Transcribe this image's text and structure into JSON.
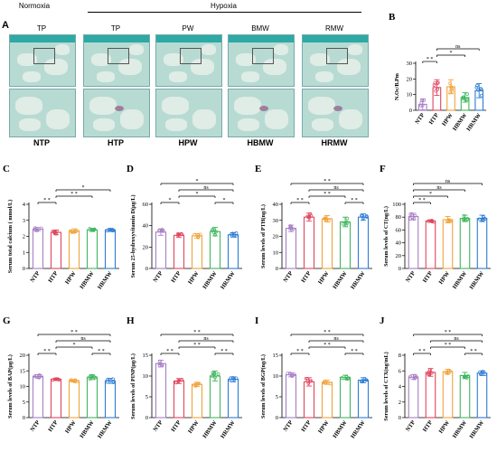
{
  "panel_a": {
    "letter": "A",
    "normoxia_label": "Normoxia",
    "hypoxia_label": "Hypoxia",
    "top_labels": [
      "TP",
      "TP",
      "PW",
      "BMW",
      "RMW"
    ],
    "bottom_labels": [
      "NTP",
      "HTP",
      "HPW",
      "HBMW",
      "HRMW"
    ]
  },
  "colors": {
    "NTP": "#a77fc4",
    "HTP": "#e0455d",
    "HPW": "#f0a33a",
    "HBMW": "#3fb65e",
    "HRMW": "#2d7bd4"
  },
  "chart_data": [
    {
      "id": "B",
      "type": "bar",
      "ylabel": "N.Oc/B.Pm",
      "categories": [
        "NTP",
        "HTP",
        "HPW",
        "HBMW",
        "HRMW"
      ],
      "values": [
        3.8,
        14.5,
        15.0,
        8.2,
        12.5
      ],
      "errors": [
        3.5,
        5.0,
        4.5,
        3.0,
        4.5
      ],
      "ylim": [
        0,
        30
      ],
      "yticks": [
        0,
        10,
        20,
        30
      ],
      "significance": [
        {
          "from": 0,
          "to": 1,
          "label": "* *",
          "level": 0
        },
        {
          "from": 1,
          "to": 3,
          "label": "*",
          "level": 1
        },
        {
          "from": 1,
          "to": 4,
          "label": "ns",
          "level": 2
        }
      ]
    },
    {
      "id": "C",
      "type": "bar",
      "ylabel": "Serum total calcium ( mmol/L)",
      "categories": [
        "NTP",
        "HTP",
        "HPW",
        "HBMW",
        "HRMW"
      ],
      "values": [
        2.45,
        2.25,
        2.35,
        2.4,
        2.4
      ],
      "errors": [
        0.1,
        0.15,
        0.12,
        0.1,
        0.1
      ],
      "ylim": [
        0,
        4
      ],
      "yticks": [
        0,
        1,
        2,
        3,
        4
      ],
      "significance": [
        {
          "from": 0,
          "to": 1,
          "label": "* *",
          "level": 0
        },
        {
          "from": 1,
          "to": 3,
          "label": "* *",
          "level": 1
        },
        {
          "from": 1,
          "to": 4,
          "label": "*",
          "level": 2
        }
      ]
    },
    {
      "id": "D",
      "type": "bar",
      "ylabel": "Serum 25-hydroxyvitamin D(μg/L)",
      "categories": [
        "NTP",
        "HTP",
        "HPW",
        "HBMW",
        "HRMW"
      ],
      "values": [
        34,
        31,
        30.5,
        34.5,
        31.5
      ],
      "errors": [
        3,
        2,
        2,
        4,
        2
      ],
      "ylim": [
        0,
        60
      ],
      "yticks": [
        0,
        20,
        40,
        60
      ],
      "significance": [
        {
          "from": 0,
          "to": 1,
          "label": "*",
          "level": 0
        },
        {
          "from": 3,
          "to": 4,
          "label": "*",
          "level": 0
        },
        {
          "from": 1,
          "to": 3,
          "label": "*",
          "level": 1
        },
        {
          "from": 1,
          "to": 4,
          "label": "ns",
          "level": 2
        },
        {
          "from": 0,
          "to": 4,
          "label": "*",
          "level": 3
        }
      ]
    },
    {
      "id": "E",
      "type": "bar",
      "ylabel": "Serum levels of PTH(ng/L)",
      "categories": [
        "NTP",
        "HTP",
        "HPW",
        "HBMW",
        "HRMW"
      ],
      "values": [
        25,
        32,
        31,
        29,
        32
      ],
      "errors": [
        2,
        2.5,
        2,
        3,
        2
      ],
      "ylim": [
        0,
        40
      ],
      "yticks": [
        0,
        10,
        20,
        30,
        40
      ],
      "significance": [
        {
          "from": 0,
          "to": 1,
          "label": "* *",
          "level": 0
        },
        {
          "from": 3,
          "to": 4,
          "label": "* *",
          "level": 0
        },
        {
          "from": 1,
          "to": 3,
          "label": "* *",
          "level": 1
        },
        {
          "from": 1,
          "to": 4,
          "label": "ns",
          "level": 2
        },
        {
          "from": 0,
          "to": 4,
          "label": "* *",
          "level": 3
        }
      ]
    },
    {
      "id": "F",
      "type": "bar",
      "ylabel": "Serum levels of CT(ng/L)",
      "categories": [
        "NTP",
        "HTP",
        "HPW",
        "HBMW",
        "HRMW"
      ],
      "values": [
        81,
        74,
        76,
        78,
        78
      ],
      "errors": [
        5,
        2,
        5,
        5,
        5
      ],
      "ylim": [
        0,
        100
      ],
      "yticks": [
        0,
        20,
        40,
        60,
        80,
        100
      ],
      "significance": [
        {
          "from": 0,
          "to": 1,
          "label": "* *",
          "level": 0
        },
        {
          "from": 0,
          "to": 2,
          "label": "*",
          "level": 1
        },
        {
          "from": 0,
          "to": 3,
          "label": "ns",
          "level": 2
        },
        {
          "from": 0,
          "to": 4,
          "label": "ns",
          "level": 3
        }
      ]
    },
    {
      "id": "G",
      "type": "bar",
      "ylabel": "Serum levels of BAP(μg/L)",
      "categories": [
        "NTP",
        "HTP",
        "HPW",
        "HBMW",
        "HRMW"
      ],
      "values": [
        13.2,
        12.3,
        11.8,
        13.0,
        11.8
      ],
      "errors": [
        0.6,
        0.4,
        0.4,
        0.8,
        0.8
      ],
      "ylim": [
        0,
        20
      ],
      "yticks": [
        0,
        5,
        10,
        15,
        20
      ],
      "significance": [
        {
          "from": 0,
          "to": 1,
          "label": "* *",
          "level": 0
        },
        {
          "from": 3,
          "to": 4,
          "label": "* *",
          "level": 0
        },
        {
          "from": 1,
          "to": 3,
          "label": "*",
          "level": 1
        },
        {
          "from": 1,
          "to": 4,
          "label": "ns",
          "level": 2
        },
        {
          "from": 0,
          "to": 4,
          "label": "* *",
          "level": 3
        }
      ]
    },
    {
      "id": "H",
      "type": "bar",
      "ylabel": "Serum levels of PINP(μg/L)",
      "categories": [
        "NTP",
        "HTP",
        "HPW",
        "HBMW",
        "HRMW"
      ],
      "values": [
        13.0,
        8.8,
        8.0,
        10.0,
        9.2
      ],
      "errors": [
        0.8,
        0.6,
        0.5,
        1.2,
        0.6
      ],
      "ylim": [
        0,
        15
      ],
      "yticks": [
        0,
        5,
        10,
        15
      ],
      "significance": [
        {
          "from": 0,
          "to": 1,
          "label": "* *",
          "level": 0
        },
        {
          "from": 3,
          "to": 4,
          "label": "* *",
          "level": 0
        },
        {
          "from": 1,
          "to": 3,
          "label": "* *",
          "level": 1
        },
        {
          "from": 1,
          "to": 4,
          "label": "ns",
          "level": 2
        },
        {
          "from": 0,
          "to": 4,
          "label": "* *",
          "level": 3
        }
      ]
    },
    {
      "id": "I",
      "type": "bar",
      "ylabel": "Serum levels of BGP(ng/L)",
      "categories": [
        "NTP",
        "HTP",
        "HPW",
        "HBMW",
        "HRMW"
      ],
      "values": [
        10.3,
        8.6,
        8.5,
        9.7,
        9.0
      ],
      "errors": [
        0.5,
        1.0,
        0.5,
        0.5,
        0.6
      ],
      "ylim": [
        0,
        15
      ],
      "yticks": [
        0,
        5,
        10,
        15
      ],
      "significance": [
        {
          "from": 0,
          "to": 1,
          "label": "* *",
          "level": 0
        },
        {
          "from": 3,
          "to": 4,
          "label": "* *",
          "level": 0
        },
        {
          "from": 1,
          "to": 3,
          "label": "* *",
          "level": 1
        },
        {
          "from": 1,
          "to": 4,
          "label": "ns",
          "level": 2
        },
        {
          "from": 0,
          "to": 4,
          "label": "* *",
          "level": 3
        }
      ]
    },
    {
      "id": "J",
      "type": "bar",
      "ylabel": "Serum levels of CTX(ng/mL)",
      "categories": [
        "NTP",
        "HTP",
        "HPW",
        "HBMW",
        "HRMW"
      ],
      "values": [
        5.2,
        5.8,
        5.9,
        5.4,
        5.7
      ],
      "errors": [
        0.3,
        0.5,
        0.3,
        0.4,
        0.3
      ],
      "ylim": [
        0,
        8
      ],
      "yticks": [
        0,
        2,
        4,
        6,
        8
      ],
      "significance": [
        {
          "from": 0,
          "to": 1,
          "label": "* *",
          "level": 0
        },
        {
          "from": 3,
          "to": 4,
          "label": "* *",
          "level": 0
        },
        {
          "from": 1,
          "to": 3,
          "label": "* *",
          "level": 1
        },
        {
          "from": 1,
          "to": 4,
          "label": "ns",
          "level": 2
        },
        {
          "from": 0,
          "to": 4,
          "label": "* *",
          "level": 3
        }
      ]
    }
  ]
}
